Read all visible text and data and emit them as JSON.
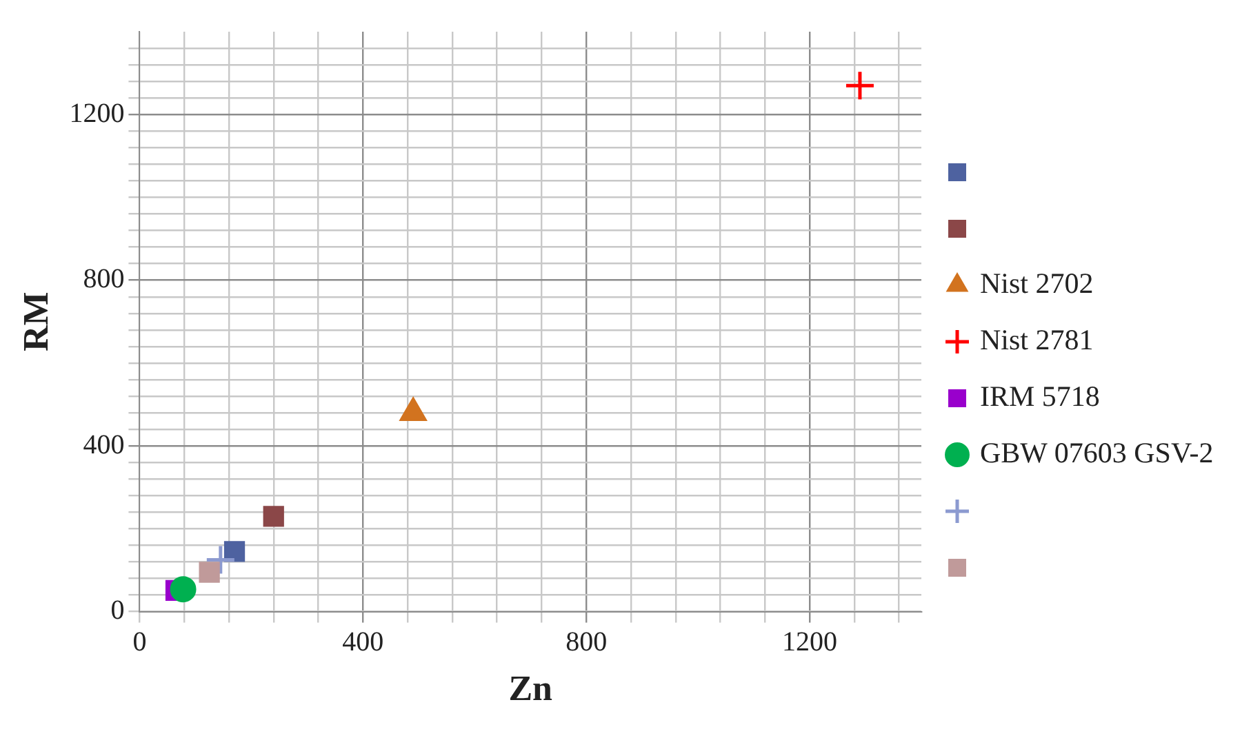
{
  "chart_data": {
    "type": "scatter",
    "xlabel": "Zn",
    "ylabel": "RM",
    "xlim": [
      0,
      1400
    ],
    "ylim": [
      0,
      1400
    ],
    "xticks": [
      0,
      {
        "value": 80,
        "label": null
      },
      {
        "value": 160,
        "label": null
      },
      {
        "value": 240,
        "label": null
      },
      {
        "value": 320,
        "label": null
      },
      400,
      {
        "value": 480,
        "label": null
      },
      {
        "value": 560,
        "label": null
      },
      {
        "value": 640,
        "label": null
      },
      {
        "value": 720,
        "label": null
      },
      800,
      {
        "value": 880,
        "label": null
      },
      {
        "value": 960,
        "label": null
      },
      {
        "value": 1040,
        "label": null
      },
      {
        "value": 1120,
        "label": null
      },
      1200,
      {
        "value": 1280,
        "label": null
      },
      {
        "value": 1360,
        "label": null
      }
    ],
    "yticks": [
      0,
      {
        "value": 40,
        "label": null
      },
      {
        "value": 80,
        "label": null
      },
      {
        "value": 120,
        "label": null
      },
      {
        "value": 160,
        "label": null
      },
      {
        "value": 200,
        "label": null
      },
      {
        "value": 240,
        "label": null
      },
      {
        "value": 280,
        "label": null
      },
      {
        "value": 320,
        "label": null
      },
      {
        "value": 360,
        "label": null
      },
      400,
      {
        "value": 440,
        "label": null
      },
      {
        "value": 480,
        "label": null
      },
      {
        "value": 520,
        "label": null
      },
      {
        "value": 560,
        "label": null
      },
      {
        "value": 600,
        "label": null
      },
      {
        "value": 640,
        "label": null
      },
      {
        "value": 680,
        "label": null
      },
      {
        "value": 720,
        "label": null
      },
      {
        "value": 760,
        "label": null
      },
      800,
      {
        "value": 840,
        "label": null
      },
      {
        "value": 880,
        "label": null
      },
      {
        "value": 920,
        "label": null
      },
      {
        "value": 960,
        "label": null
      },
      {
        "value": 1000,
        "label": null
      },
      {
        "value": 1040,
        "label": null
      },
      {
        "value": 1080,
        "label": null
      },
      {
        "value": 1120,
        "label": null
      },
      {
        "value": 1160,
        "label": null
      },
      1200,
      {
        "value": 1240,
        "label": null
      },
      {
        "value": 1280,
        "label": null
      },
      {
        "value": 1320,
        "label": null
      },
      {
        "value": 1360,
        "label": null
      }
    ],
    "grid": true,
    "legend": "right",
    "series": [
      {
        "color": "#4e62a0",
        "marker": "square",
        "x": [
          170
        ],
        "values": [
          145
        ]
      },
      {
        "color": "#8b4748",
        "marker": "square",
        "x": [
          240
        ],
        "values": [
          230
        ]
      },
      {
        "name": "Nist 2702",
        "color": "#d2731f",
        "marker": "triangle",
        "x": [
          490
        ],
        "values": [
          480
        ]
      },
      {
        "name": "Nist 2781",
        "color": "#ff0000",
        "marker": "cross",
        "x": [
          1290
        ],
        "values": [
          1270
        ]
      },
      {
        "name": "IRM 5718",
        "color": "#9900cc",
        "marker": "square",
        "x": [
          65
        ],
        "values": [
          51
        ]
      },
      {
        "name": "GBW 07603 GSV-2",
        "color": "#00b050",
        "marker": "circle",
        "x": [
          78
        ],
        "values": [
          54
        ]
      },
      {
        "color": "#8c9ad0",
        "marker": "cross",
        "x": [
          145
        ],
        "values": [
          125
        ]
      },
      {
        "color": "#c09a9a",
        "marker": "square",
        "x": [
          125
        ],
        "values": [
          95
        ]
      }
    ]
  }
}
